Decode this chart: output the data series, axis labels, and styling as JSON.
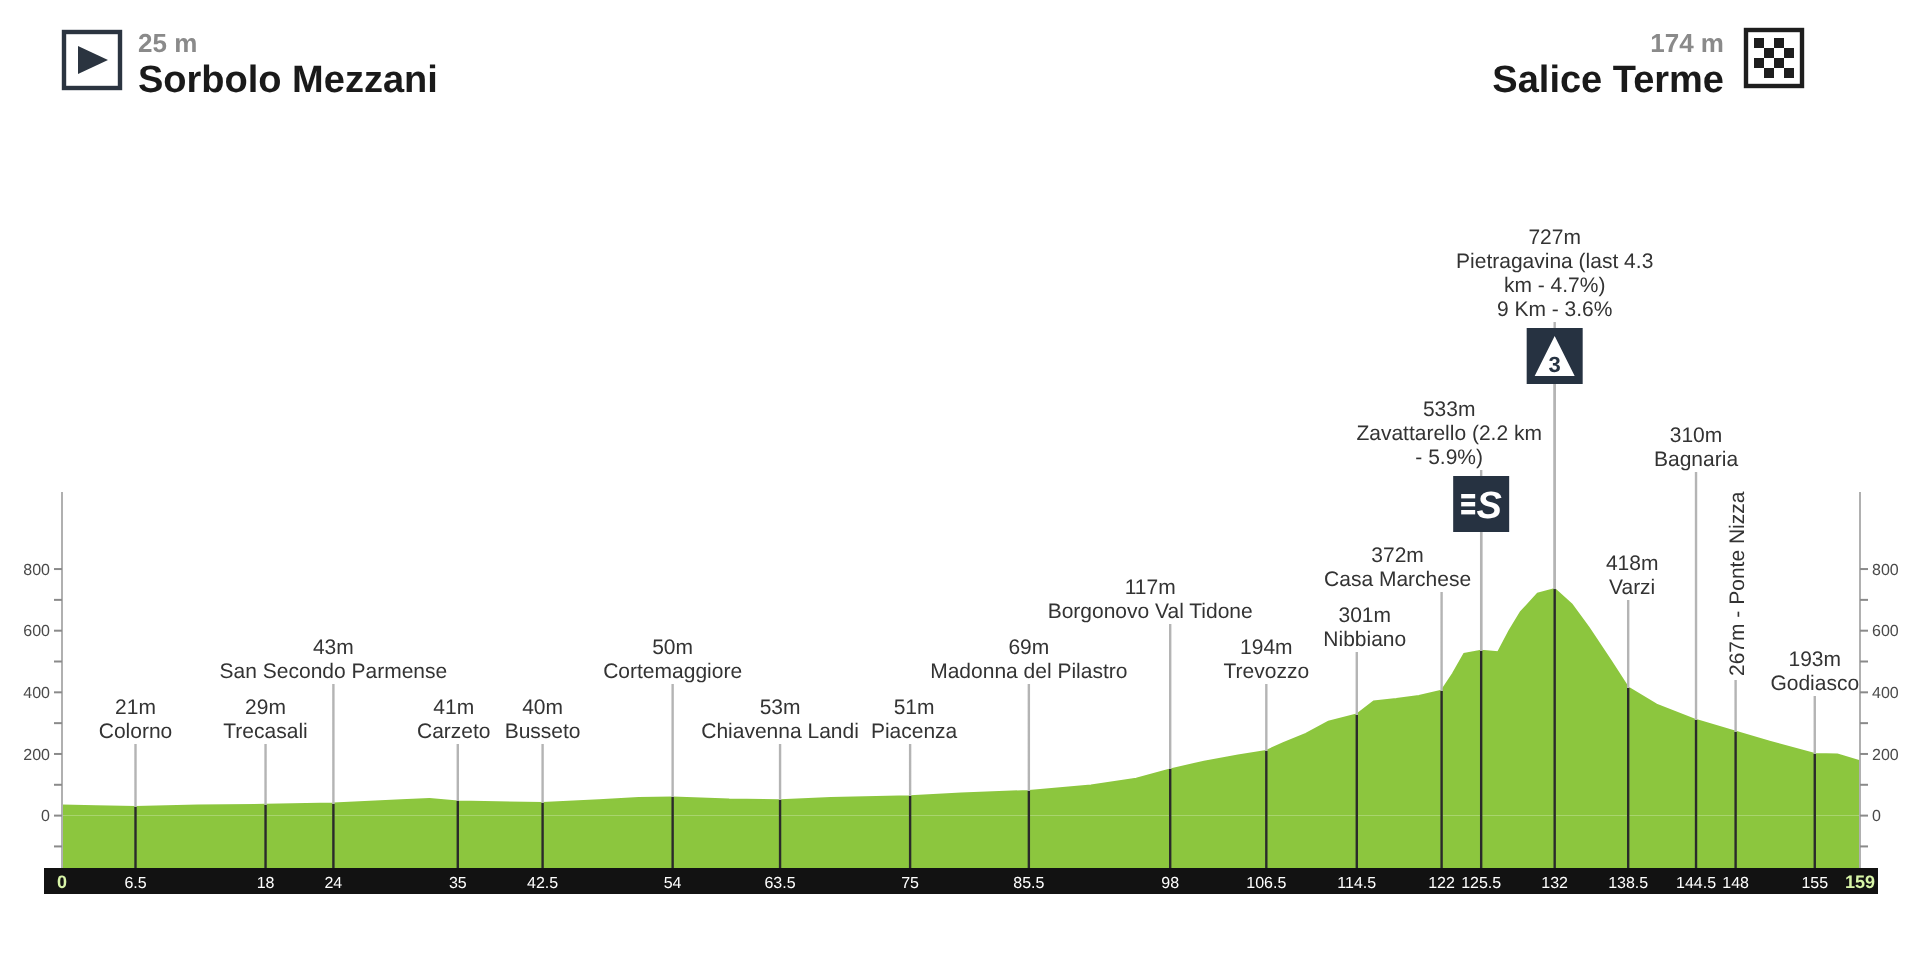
{
  "chart_data": {
    "type": "area",
    "color": "#8cc63e",
    "x": [
      0,
      3,
      6.5,
      12,
      18,
      24,
      30,
      32.5,
      35,
      38.5,
      42.5,
      47.5,
      51,
      54,
      59,
      63.5,
      68,
      75,
      79.5,
      85.5,
      91,
      95,
      98,
      101,
      104,
      106.5,
      108,
      110,
      112,
      114.5,
      116,
      118,
      120,
      122,
      123,
      124,
      125.5,
      127,
      128,
      129,
      130.5,
      132,
      133.5,
      135,
      137,
      138.5,
      141,
      144.5,
      148,
      151,
      155,
      157,
      159
    ],
    "values": [
      33,
      30,
      28,
      33,
      35,
      39,
      50,
      54,
      46,
      43,
      41,
      50,
      57,
      59,
      52,
      50,
      57,
      63,
      72,
      80,
      98,
      120,
      150,
      175,
      195,
      210,
      235,
      265,
      305,
      328,
      370,
      378,
      388,
      405,
      460,
      525,
      535,
      530,
      600,
      660,
      720,
      735,
      685,
      610,
      500,
      415,
      360,
      310,
      272,
      240,
      200,
      198,
      176
    ],
    "xlim": [
      0,
      159
    ],
    "xticks": [
      0,
      6.5,
      18,
      24,
      35,
      42.5,
      54,
      63.5,
      75,
      85.5,
      98,
      106.5,
      114.5,
      122,
      125.5,
      132,
      138.5,
      144.5,
      148,
      155,
      159
    ],
    "ylim": [
      -170,
      1050
    ],
    "yticks": [
      {
        "value": -100,
        "label": null
      },
      0,
      {
        "value": 100,
        "label": null
      },
      200,
      {
        "value": 300,
        "label": null
      },
      400,
      {
        "value": 500,
        "label": null
      },
      600,
      {
        "value": 700,
        "label": null
      },
      800
    ],
    "y2lim": [
      -170,
      1050
    ],
    "y2ticks": [
      {
        "value": -100,
        "label": null
      },
      0,
      {
        "value": 100,
        "label": null
      },
      200,
      {
        "value": 300,
        "label": null
      },
      400,
      {
        "value": 500,
        "label": null
      },
      600,
      {
        "value": 700,
        "label": null
      },
      800
    ],
    "bands": [
      {
        "axis": "y",
        "from": -170,
        "to": 0,
        "color": "#8cc63e"
      }
    ],
    "ref_lines": [
      {
        "axis": "x",
        "value": 6.5,
        "label": "21m\nColorno"
      },
      {
        "axis": "x",
        "value": 18,
        "label": "29m\nTrecasali"
      },
      {
        "axis": "x",
        "value": 24,
        "label": "43m\nSan Secondo Parmense"
      },
      {
        "axis": "x",
        "value": 35,
        "label": "41m\nCarzeto"
      },
      {
        "axis": "x",
        "value": 42.5,
        "label": "40m\nBusseto"
      },
      {
        "axis": "x",
        "value": 54,
        "label": "50m\nCortemaggiore"
      },
      {
        "axis": "x",
        "value": 63.5,
        "label": "53m\nChiavenna Landi"
      },
      {
        "axis": "x",
        "value": 75,
        "label": "51m\nPiacenza"
      },
      {
        "axis": "x",
        "value": 85.5,
        "label": "69m\nMadonna del Pilastro"
      },
      {
        "axis": "x",
        "value": 98,
        "label": "117m\nBorgonovo Val Tidone"
      },
      {
        "axis": "x",
        "value": 106.5,
        "label": "194m\nTrevozzo"
      },
      {
        "axis": "x",
        "value": 114.5,
        "label": "301m\nNibbiano"
      },
      {
        "axis": "x",
        "value": 122,
        "label": "372m\nCasa Marchese"
      },
      {
        "axis": "x",
        "value": 125.5,
        "label": "533m\nZavattarello (2.2 km\n- 5.9%)"
      },
      {
        "axis": "x",
        "value": 132,
        "label": "727m\nPietragavina (last 4.3\nkm - 4.7%)\n9 Km - 3.6%"
      },
      {
        "axis": "x",
        "value": 138.5,
        "label": "418m\nVarzi"
      },
      {
        "axis": "x",
        "value": 144.5,
        "label": "310m\nBagnaria"
      },
      {
        "axis": "x",
        "value": 148,
        "label": "267m - Ponte Nizza"
      },
      {
        "axis": "x",
        "value": 155,
        "label": "193m\nGodiasco"
      }
    ],
    "annotations": [
      "25 m\nSorbolo Mezzani",
      "174 m\nSalice Terme",
      {
        "text": "S",
        "x": 125.5,
        "y": 535
      },
      {
        "text": "3",
        "x": 132,
        "y": 735
      }
    ]
  }
}
